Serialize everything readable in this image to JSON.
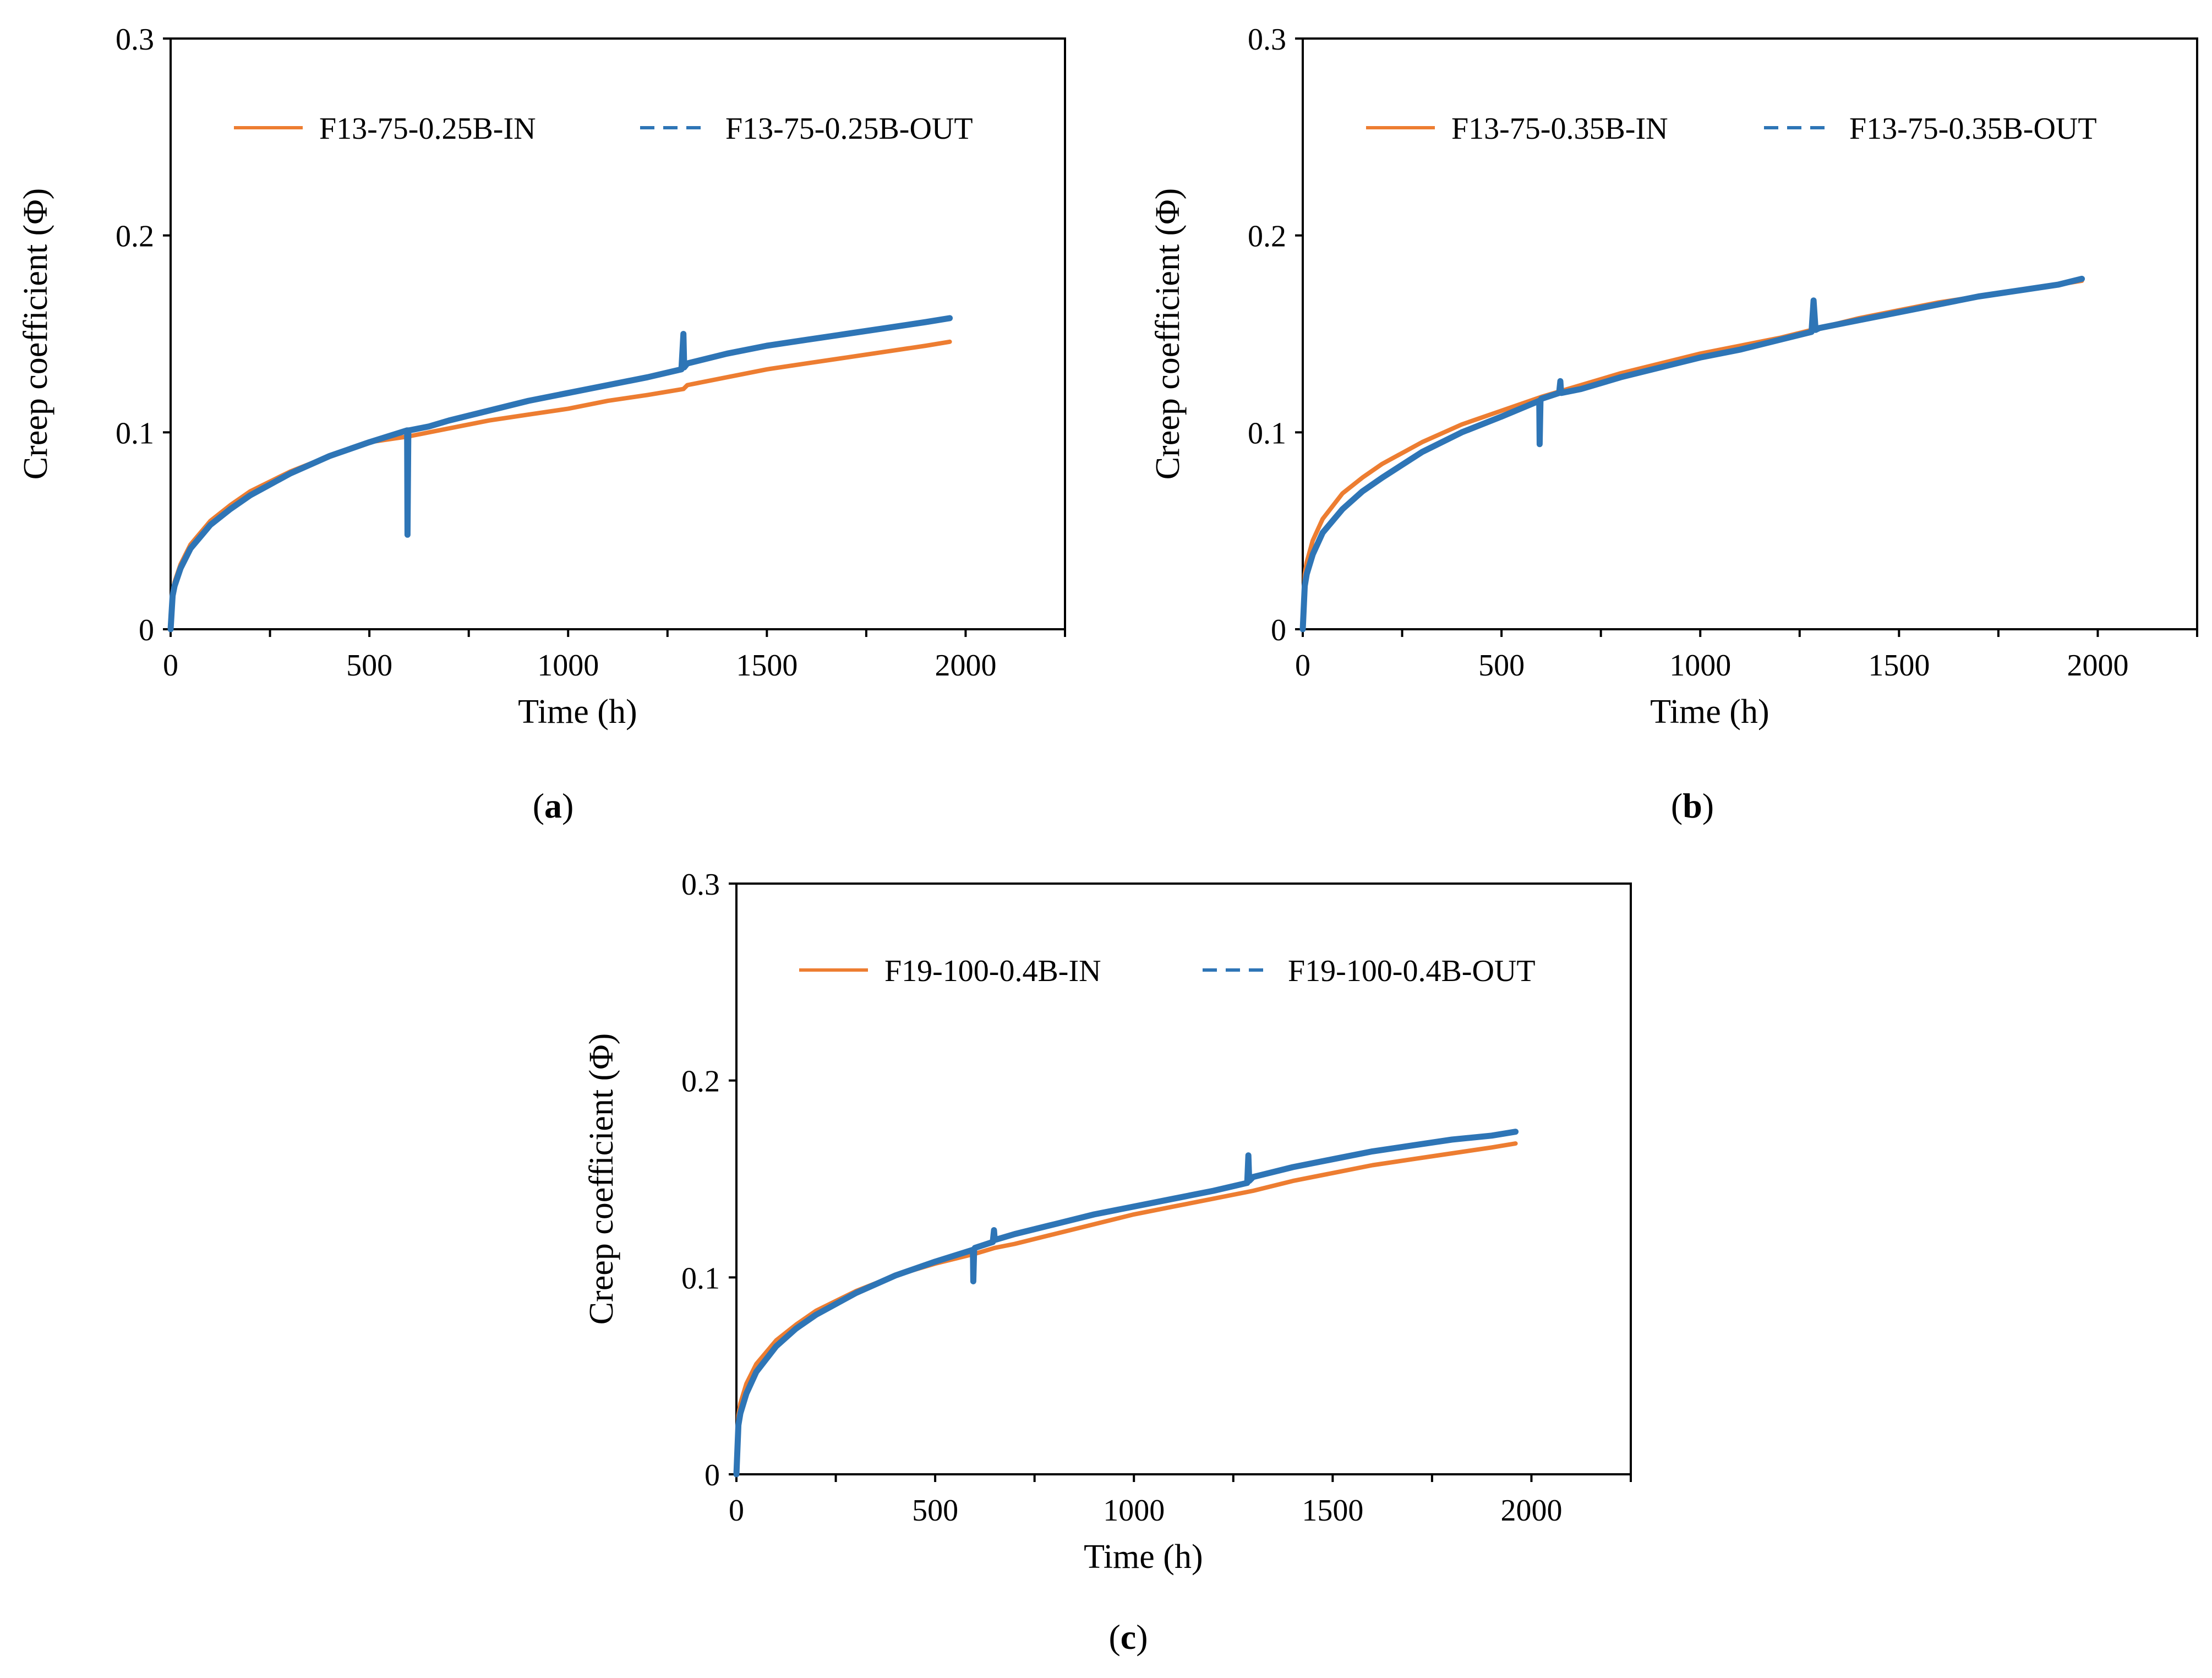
{
  "colors": {
    "in": "#ED7D31",
    "out": "#2E75B6",
    "axis": "#000000",
    "plot_frame": "#000000"
  },
  "chart_data": [
    {
      "id": "a",
      "type": "line",
      "caption_letter": "a",
      "xlabel": "Time (h)",
      "ylabel": "Creep coefficient (Φ)",
      "xlim": [
        0,
        2250
      ],
      "ylim": [
        0,
        0.3
      ],
      "xticks": [
        0,
        500,
        1000,
        1500,
        2000
      ],
      "xtick_labels": [
        "0",
        "500",
        "1000",
        "1500",
        "2000"
      ],
      "yticks": [
        0,
        0.1,
        0.2,
        0.3
      ],
      "ytick_labels": [
        "0",
        "0.1",
        "0.2",
        "0.3"
      ],
      "legend_position": "top",
      "series": [
        {
          "name": "F13-75-0.25B-IN",
          "style": "solid",
          "color_key": "in",
          "x": [
            0,
            5,
            10,
            25,
            50,
            100,
            150,
            200,
            300,
            400,
            500,
            600,
            650,
            700,
            800,
            900,
            1000,
            1100,
            1200,
            1290,
            1300,
            1400,
            1500,
            1600,
            1700,
            1800,
            1900,
            1960
          ],
          "y": [
            0.0,
            0.018,
            0.024,
            0.033,
            0.043,
            0.055,
            0.063,
            0.07,
            0.08,
            0.088,
            0.095,
            0.098,
            0.1,
            0.102,
            0.106,
            0.109,
            0.112,
            0.116,
            0.119,
            0.122,
            0.124,
            0.128,
            0.132,
            0.135,
            0.138,
            0.141,
            0.144,
            0.146
          ]
        },
        {
          "name": "F13-75-0.25B-OUT",
          "style": "dashed",
          "color_key": "out",
          "x": [
            0,
            5,
            10,
            25,
            50,
            100,
            150,
            200,
            300,
            400,
            500,
            595,
            596,
            598,
            600,
            650,
            700,
            800,
            900,
            1000,
            1100,
            1200,
            1285,
            1290,
            1292,
            1300,
            1400,
            1500,
            1600,
            1700,
            1800,
            1900,
            1960
          ],
          "y": [
            0.0,
            0.017,
            0.022,
            0.031,
            0.041,
            0.053,
            0.061,
            0.068,
            0.079,
            0.088,
            0.095,
            0.101,
            0.048,
            0.101,
            0.101,
            0.103,
            0.106,
            0.111,
            0.116,
            0.12,
            0.124,
            0.128,
            0.132,
            0.15,
            0.133,
            0.135,
            0.14,
            0.144,
            0.147,
            0.15,
            0.153,
            0.156,
            0.158
          ]
        }
      ]
    },
    {
      "id": "b",
      "type": "line",
      "caption_letter": "b",
      "xlabel": "Time (h)",
      "ylabel": "Creep coefficient (Φ)",
      "xlim": [
        0,
        2250
      ],
      "ylim": [
        0,
        0.3
      ],
      "xticks": [
        0,
        500,
        1000,
        1500,
        2000
      ],
      "xtick_labels": [
        "0",
        "500",
        "1000",
        "1500",
        "2000"
      ],
      "yticks": [
        0,
        0.1,
        0.2,
        0.3
      ],
      "ytick_labels": [
        "0",
        "0.1",
        "0.2",
        "0.3"
      ],
      "legend_position": "top",
      "series": [
        {
          "name": "F13-75-0.35B-IN",
          "style": "solid",
          "color_key": "in",
          "x": [
            0,
            5,
            10,
            25,
            50,
            100,
            150,
            200,
            300,
            400,
            500,
            600,
            650,
            700,
            800,
            900,
            1000,
            1100,
            1200,
            1300,
            1400,
            1500,
            1600,
            1700,
            1800,
            1900,
            1960
          ],
          "y": [
            0.0,
            0.028,
            0.034,
            0.045,
            0.056,
            0.069,
            0.077,
            0.084,
            0.095,
            0.104,
            0.111,
            0.118,
            0.121,
            0.124,
            0.13,
            0.135,
            0.14,
            0.144,
            0.148,
            0.153,
            0.158,
            0.162,
            0.166,
            0.169,
            0.172,
            0.175,
            0.177
          ]
        },
        {
          "name": "F13-75-0.35B-OUT",
          "style": "dashed",
          "color_key": "out",
          "x": [
            0,
            5,
            10,
            25,
            50,
            100,
            150,
            200,
            300,
            400,
            500,
            595,
            596,
            598,
            600,
            645,
            648,
            650,
            700,
            800,
            900,
            1000,
            1100,
            1200,
            1280,
            1285,
            1290,
            1300,
            1400,
            1500,
            1600,
            1700,
            1800,
            1900,
            1960
          ],
          "y": [
            0.0,
            0.022,
            0.028,
            0.038,
            0.049,
            0.061,
            0.07,
            0.077,
            0.09,
            0.1,
            0.108,
            0.116,
            0.094,
            0.116,
            0.117,
            0.12,
            0.126,
            0.12,
            0.122,
            0.128,
            0.133,
            0.138,
            0.142,
            0.147,
            0.151,
            0.167,
            0.152,
            0.153,
            0.157,
            0.161,
            0.165,
            0.169,
            0.172,
            0.175,
            0.178
          ]
        }
      ]
    },
    {
      "id": "c",
      "type": "line",
      "caption_letter": "c",
      "xlabel": "Time (h)",
      "ylabel": "Creep coefficient (Φ)",
      "xlim": [
        0,
        2250
      ],
      "ylim": [
        0,
        0.3
      ],
      "xticks": [
        0,
        500,
        1000,
        1500,
        2000
      ],
      "xtick_labels": [
        "0",
        "500",
        "1000",
        "1500",
        "2000"
      ],
      "yticks": [
        0,
        0.1,
        0.2,
        0.3
      ],
      "ytick_labels": [
        "0",
        "0.1",
        "0.2",
        "0.3"
      ],
      "legend_position": "top",
      "series": [
        {
          "name": "F19-100-0.4B-IN",
          "style": "solid",
          "color_key": "in",
          "x": [
            0,
            5,
            10,
            25,
            50,
            100,
            150,
            200,
            300,
            400,
            500,
            600,
            650,
            700,
            800,
            900,
            1000,
            1100,
            1200,
            1300,
            1400,
            1500,
            1600,
            1700,
            1800,
            1900,
            1960
          ],
          "y": [
            0.0,
            0.03,
            0.036,
            0.046,
            0.056,
            0.068,
            0.076,
            0.083,
            0.093,
            0.101,
            0.107,
            0.112,
            0.115,
            0.117,
            0.122,
            0.127,
            0.132,
            0.136,
            0.14,
            0.144,
            0.149,
            0.153,
            0.157,
            0.16,
            0.163,
            0.166,
            0.168
          ]
        },
        {
          "name": "F19-100-0.4B-OUT",
          "style": "dashed",
          "color_key": "out",
          "x": [
            0,
            5,
            10,
            25,
            50,
            100,
            150,
            200,
            300,
            400,
            500,
            595,
            596,
            598,
            600,
            645,
            648,
            650,
            700,
            800,
            900,
            1000,
            1100,
            1200,
            1285,
            1288,
            1290,
            1300,
            1400,
            1500,
            1600,
            1700,
            1800,
            1900,
            1960
          ],
          "y": [
            0.0,
            0.025,
            0.031,
            0.041,
            0.052,
            0.065,
            0.074,
            0.081,
            0.092,
            0.101,
            0.108,
            0.114,
            0.098,
            0.114,
            0.115,
            0.118,
            0.124,
            0.119,
            0.122,
            0.127,
            0.132,
            0.136,
            0.14,
            0.144,
            0.148,
            0.162,
            0.149,
            0.151,
            0.156,
            0.16,
            0.164,
            0.167,
            0.17,
            0.172,
            0.174
          ]
        }
      ]
    }
  ]
}
